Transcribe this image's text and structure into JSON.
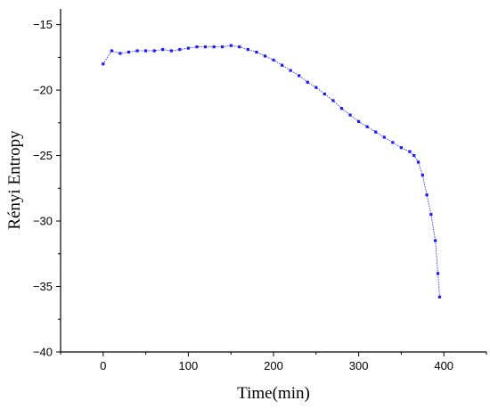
{
  "chart_data": {
    "type": "line",
    "title": "",
    "xlabel": "Time(min)",
    "ylabel": "Rényi Entropy",
    "xlim": [
      -50,
      450
    ],
    "ylim": [
      -40,
      -13.8
    ],
    "xticks": [
      0,
      100,
      200,
      300,
      400
    ],
    "yticks": [
      -40,
      -35,
      -30,
      -25,
      -20,
      -15
    ],
    "xtick_labels": [
      "0",
      "100",
      "200",
      "300",
      "400"
    ],
    "ytick_labels": [
      "−40",
      "−35",
      "−30",
      "−25",
      "−20",
      "−15"
    ],
    "grid": false,
    "legend": "none",
    "color": "#1a1aff",
    "marker": "square",
    "series": [
      {
        "x": [
          0,
          10,
          20,
          30,
          40,
          50,
          60,
          70,
          80,
          90,
          100,
          110,
          120,
          130,
          140,
          150,
          160,
          170,
          180,
          190,
          200,
          210,
          220,
          230,
          240,
          250,
          260,
          270,
          280,
          290,
          300,
          310,
          320,
          330,
          340,
          350,
          360,
          365,
          370,
          375,
          380,
          385,
          390,
          393,
          395
        ],
        "y": [
          -18.0,
          -17.0,
          -17.2,
          -17.1,
          -17.0,
          -17.0,
          -17.0,
          -16.9,
          -17.0,
          -16.9,
          -16.8,
          -16.7,
          -16.7,
          -16.7,
          -16.7,
          -16.6,
          -16.7,
          -16.9,
          -17.1,
          -17.4,
          -17.7,
          -18.1,
          -18.5,
          -18.9,
          -19.4,
          -19.8,
          -20.3,
          -20.8,
          -21.4,
          -21.9,
          -22.4,
          -22.8,
          -23.2,
          -23.6,
          -24.0,
          -24.4,
          -24.7,
          -25.0,
          -25.5,
          -26.5,
          -28.0,
          -29.5,
          -31.5,
          -34.0,
          -35.8
        ]
      }
    ]
  }
}
